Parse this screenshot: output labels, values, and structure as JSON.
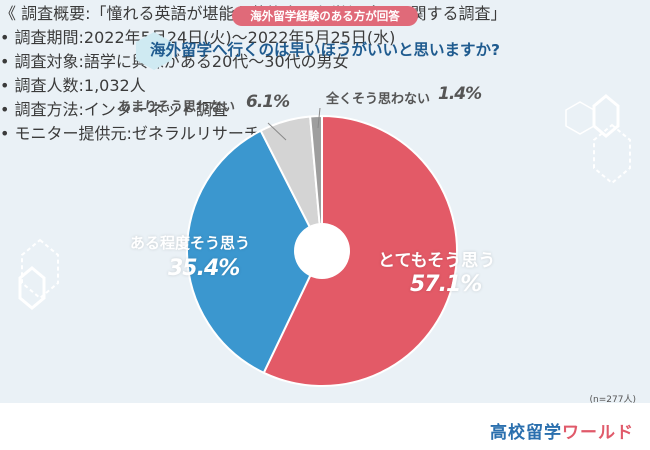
{
  "header": {
    "banner": "海外留学経験のある方が回答",
    "question": "海外留学へ行くのは早いほうがいいと思いますか?"
  },
  "chart_data": {
    "type": "pie",
    "slices": [
      {
        "label": "とてもそう思う",
        "value": 57.1,
        "display": "57.1%",
        "color": "#e35a67"
      },
      {
        "label": "ある程度そう思う",
        "value": 35.4,
        "display": "35.4%",
        "color": "#3b97cf"
      },
      {
        "label": "あまりそう思わない",
        "value": 6.1,
        "display": "6.1%",
        "color": "#d4d4d4"
      },
      {
        "label": "全くそう思わない",
        "value": 1.4,
        "display": "1.4%",
        "color": "#9e9e9e"
      }
    ],
    "n_label": "(n=277人)"
  },
  "footer": {
    "survey_title": "《 調査概要:「憧れる英語が堪能な芸能人と留学経験」に関する調査」",
    "period": "• 調査期間:2022年5月24日(火)〜2022年5月25日(水)",
    "target": "• 調査対象:語学に興味がある20代〜30代の男女",
    "count": "• 調査人数:1,032人",
    "method": "• 調査方法:インターネット調査",
    "provider": "• モニター提供元:ゼネラルリサーチ",
    "logo_part1": "高校留学",
    "logo_part2": "ワールド"
  }
}
